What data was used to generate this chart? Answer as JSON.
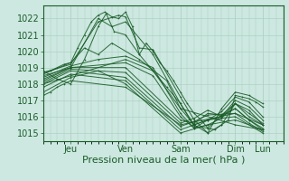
{
  "background_color": "#cce8e0",
  "grid_color": "#aaccbe",
  "line_color": "#1a5c28",
  "ylabel_ticks": [
    1015,
    1016,
    1017,
    1018,
    1019,
    1020,
    1021,
    1022
  ],
  "ylim": [
    1014.5,
    1022.8
  ],
  "xlabel": "Pression niveau de la mer( hPa )",
  "xlabel_fontsize": 8,
  "tick_fontsize": 7,
  "day_labels": [
    "Jeu",
    "Ven",
    "Sam",
    "Dim",
    "Lun"
  ],
  "day_positions": [
    24,
    72,
    120,
    168,
    192
  ],
  "xlim": [
    0,
    210
  ],
  "lines": [
    [
      0,
      1018.7,
      6,
      1018.8,
      12,
      1019.0,
      18,
      1019.2,
      24,
      1019.3,
      30,
      1020.2,
      36,
      1021.0,
      42,
      1021.8,
      48,
      1022.2,
      54,
      1022.4,
      60,
      1022.1,
      66,
      1022.0,
      72,
      1022.4,
      78,
      1021.5,
      84,
      1019.8,
      90,
      1020.5,
      96,
      1020.0,
      102,
      1019.3,
      108,
      1018.8,
      114,
      1018.2,
      120,
      1017.5,
      126,
      1016.8,
      132,
      1016.2,
      138,
      1015.8,
      144,
      1015.3,
      150,
      1015.2,
      156,
      1015.5,
      162,
      1015.8,
      168,
      1017.3,
      174,
      1017.2,
      180,
      1017.1,
      186,
      1016.9,
      192,
      1016.6
    ],
    [
      0,
      1018.7,
      24,
      1019.2,
      48,
      1021.8,
      66,
      1022.2,
      72,
      1022.1,
      84,
      1020.2,
      96,
      1020.1,
      120,
      1017.2,
      132,
      1015.8,
      144,
      1015.0,
      156,
      1015.5,
      168,
      1016.8,
      180,
      1016.4,
      192,
      1015.5
    ],
    [
      0,
      1018.5,
      24,
      1019.0,
      48,
      1022.0,
      60,
      1021.5,
      72,
      1021.8,
      96,
      1019.8,
      120,
      1016.8,
      132,
      1015.4,
      144,
      1015.3,
      156,
      1016.1,
      168,
      1016.5,
      180,
      1015.8,
      192,
      1015.2
    ],
    [
      0,
      1018.6,
      24,
      1019.3,
      36,
      1020.2,
      48,
      1019.8,
      60,
      1020.5,
      84,
      1019.5,
      108,
      1018.2,
      120,
      1016.5,
      132,
      1015.5,
      144,
      1015.8,
      156,
      1016.3,
      168,
      1017.2,
      180,
      1016.9,
      192,
      1016.0
    ],
    [
      0,
      1018.4,
      24,
      1019.1,
      48,
      1019.5,
      72,
      1019.7,
      96,
      1019.0,
      120,
      1016.2,
      132,
      1015.3,
      144,
      1015.5,
      156,
      1015.9,
      168,
      1016.8,
      180,
      1016.2,
      192,
      1015.6
    ],
    [
      0,
      1018.3,
      24,
      1019.0,
      72,
      1019.3,
      96,
      1018.5,
      120,
      1016.0,
      132,
      1015.3,
      144,
      1015.8,
      156,
      1016.0,
      168,
      1017.0,
      180,
      1016.6,
      192,
      1015.8
    ],
    [
      0,
      1018.2,
      24,
      1019.0,
      72,
      1019.0,
      120,
      1015.8,
      132,
      1015.6,
      144,
      1016.2,
      156,
      1016.1,
      168,
      1016.8,
      180,
      1016.0,
      192,
      1015.5
    ],
    [
      0,
      1018.1,
      24,
      1018.9,
      72,
      1018.7,
      120,
      1015.6,
      132,
      1015.9,
      144,
      1016.4,
      156,
      1016.0,
      168,
      1016.5,
      180,
      1015.8,
      192,
      1015.3
    ],
    [
      0,
      1018.0,
      24,
      1018.8,
      72,
      1018.4,
      120,
      1015.4,
      132,
      1015.7,
      144,
      1016.1,
      168,
      1016.2,
      180,
      1015.6,
      192,
      1015.1
    ],
    [
      0,
      1017.8,
      24,
      1018.6,
      72,
      1018.2,
      120,
      1015.2,
      132,
      1015.5,
      144,
      1015.8,
      168,
      1016.0,
      192,
      1015.0
    ],
    [
      0,
      1017.5,
      24,
      1018.4,
      48,
      1018.8,
      72,
      1018.0,
      120,
      1015.0,
      144,
      1015.5,
      168,
      1015.8,
      192,
      1015.2
    ],
    [
      0,
      1018.8,
      12,
      1018.3,
      24,
      1018.0,
      36,
      1019.5,
      48,
      1021.5,
      55,
      1022.3,
      62,
      1021.2,
      72,
      1021.0,
      84,
      1019.8,
      108,
      1017.8,
      120,
      1016.8,
      132,
      1015.5,
      144,
      1015.0,
      156,
      1016.5,
      168,
      1017.5,
      180,
      1017.3,
      192,
      1016.8
    ],
    [
      0,
      1017.3,
      6,
      1017.5,
      12,
      1017.8,
      18,
      1018.0,
      24,
      1018.2,
      72,
      1017.8,
      120,
      1015.5,
      168,
      1016.2,
      192,
      1015.5
    ],
    [
      0,
      1018.0,
      24,
      1018.5,
      72,
      1019.5,
      96,
      1018.8,
      120,
      1016.5,
      168,
      1015.5,
      192,
      1015.2
    ]
  ]
}
